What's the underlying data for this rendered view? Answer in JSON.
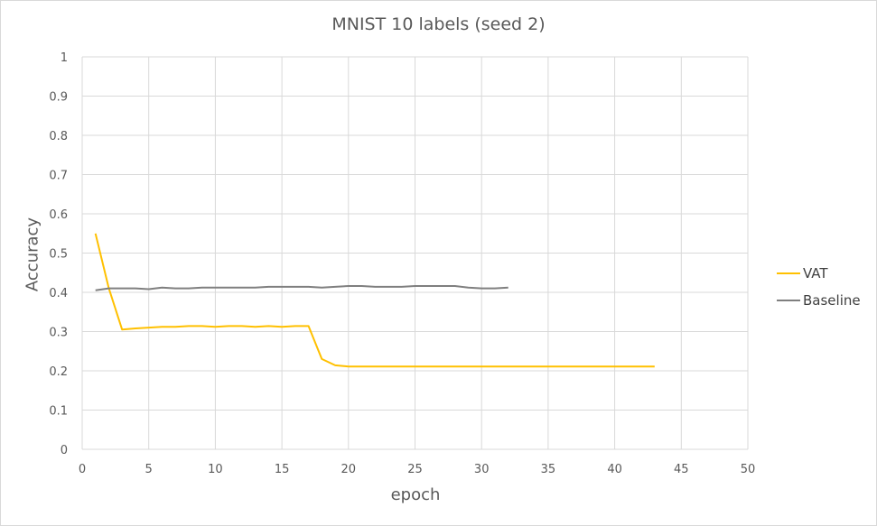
{
  "chart_data": {
    "type": "line",
    "title": "MNIST 10 labels (seed 2)",
    "xlabel": "epoch",
    "ylabel": "Accuracy",
    "xlim": [
      0,
      50
    ],
    "ylim": [
      0,
      1
    ],
    "xticks": [
      "0",
      "5",
      "10",
      "15",
      "20",
      "25",
      "30",
      "35",
      "40",
      "45",
      "50"
    ],
    "yticks": [
      "0",
      "0.1",
      "0.2",
      "0.3",
      "0.4",
      "0.5",
      "0.6",
      "0.7",
      "0.8",
      "0.9",
      "1"
    ],
    "grid": true,
    "legend_position": "right",
    "series": [
      {
        "name": "VAT",
        "color": "#ffc000",
        "x": [
          1,
          2,
          3,
          4,
          5,
          6,
          7,
          8,
          9,
          10,
          11,
          12,
          13,
          14,
          15,
          16,
          17,
          18,
          19,
          20,
          21,
          22,
          23,
          24,
          25,
          26,
          27,
          28,
          29,
          30,
          31,
          32,
          33,
          34,
          35,
          36,
          37,
          38,
          39,
          40,
          41,
          42,
          43
        ],
        "y": [
          0.55,
          0.41,
          0.305,
          0.308,
          0.31,
          0.312,
          0.312,
          0.314,
          0.314,
          0.312,
          0.314,
          0.314,
          0.312,
          0.314,
          0.312,
          0.314,
          0.314,
          0.23,
          0.214,
          0.211,
          0.211,
          0.211,
          0.211,
          0.211,
          0.211,
          0.211,
          0.211,
          0.211,
          0.211,
          0.211,
          0.211,
          0.211,
          0.211,
          0.211,
          0.211,
          0.211,
          0.211,
          0.211,
          0.211,
          0.211,
          0.211,
          0.211,
          0.211
        ]
      },
      {
        "name": "Baseline",
        "color": "#7f7f7f",
        "x": [
          1,
          2,
          3,
          4,
          5,
          6,
          7,
          8,
          9,
          10,
          11,
          12,
          13,
          14,
          15,
          16,
          17,
          18,
          19,
          20,
          21,
          22,
          23,
          24,
          25,
          26,
          27,
          28,
          29,
          30,
          31,
          32
        ],
        "y": [
          0.405,
          0.41,
          0.41,
          0.41,
          0.408,
          0.412,
          0.41,
          0.41,
          0.412,
          0.412,
          0.412,
          0.412,
          0.412,
          0.414,
          0.414,
          0.414,
          0.414,
          0.412,
          0.414,
          0.416,
          0.416,
          0.414,
          0.414,
          0.414,
          0.416,
          0.416,
          0.416,
          0.416,
          0.412,
          0.41,
          0.41,
          0.412
        ]
      }
    ]
  }
}
